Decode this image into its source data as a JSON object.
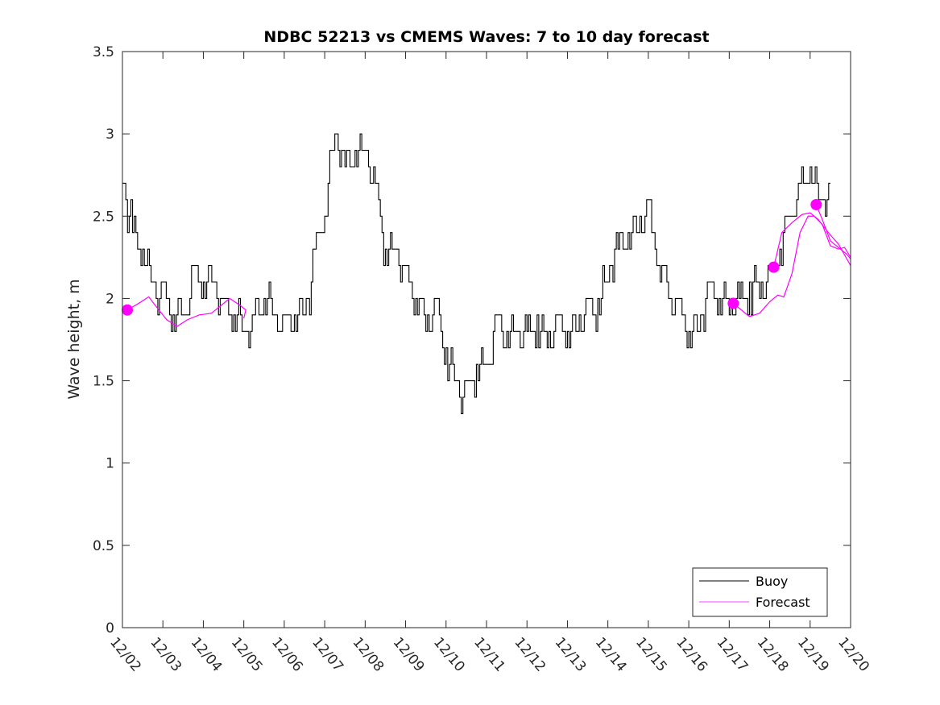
{
  "chart_data": {
    "type": "line",
    "title": "NDBC 52213 vs CMEMS Waves: 7 to 10 day forecast",
    "xlabel": "",
    "ylabel": "Wave height, m",
    "ylim": [
      0,
      3.5
    ],
    "xlim_days": [
      0,
      18
    ],
    "yticks": [
      0,
      0.5,
      1,
      1.5,
      2,
      2.5,
      3,
      3.5
    ],
    "ytick_labels": [
      "0",
      "0.5",
      "1",
      "1.5",
      "2",
      "2.5",
      "3",
      "3.5"
    ],
    "xtick_labels": [
      "12/02",
      "12/03",
      "12/04",
      "12/05",
      "12/06",
      "12/07",
      "12/08",
      "12/09",
      "12/10",
      "12/11",
      "12/12",
      "12/13",
      "12/14",
      "12/15",
      "12/16",
      "12/17",
      "12/18",
      "12/19",
      "12/20"
    ],
    "legend": {
      "placement": "bottom-right",
      "entries": [
        "Buoy",
        "Forecast"
      ]
    },
    "colors": {
      "buoy": "#000000",
      "forecast": "#ff00ff"
    },
    "buoy": {
      "x_step_days": 0.25,
      "values": [
        2.7,
        2.4,
        2.3,
        2.1,
        2.0,
        1.9,
        1.9,
        2.1,
        2.1,
        2.1,
        1.9,
        1.9,
        1.8,
        1.85,
        2.0,
        1.9,
        1.8,
        1.9,
        1.9,
        2.2,
        2.5,
        3.0,
        2.8,
        2.9,
        2.9,
        2.6,
        2.3,
        2.3,
        2.1,
        2.0,
        1.85,
        1.9,
        1.65,
        1.5,
        1.4,
        1.55,
        1.6,
        1.85,
        1.75,
        1.8,
        1.75,
        1.85,
        1.75,
        1.85,
        1.8,
        1.85,
        1.9,
        1.95,
        2.15,
        2.3,
        2.4,
        2.45,
        2.5,
        2.2,
        2.05,
        1.9,
        1.8,
        1.85,
        2.0,
        2.0,
        1.95,
        1.95,
        2.05,
        2.05,
        2.1,
        2.3,
        2.5,
        2.65,
        2.8,
        2.6
      ]
    },
    "forecast": [
      {
        "x": [
          0.12,
          0.4,
          0.65,
          0.9,
          1.1,
          1.35,
          1.6,
          1.9,
          2.2,
          2.45,
          2.65,
          2.9,
          3.05,
          3.0
        ],
        "y": [
          1.93,
          1.97,
          2.01,
          1.93,
          1.87,
          1.83,
          1.87,
          1.9,
          1.91,
          1.96,
          2.0,
          1.96,
          1.93,
          1.88
        ]
      },
      {
        "x": [
          15.1,
          15.3,
          15.5,
          15.75,
          16.0,
          16.2,
          16.35,
          16.55,
          16.75,
          16.95,
          17.1,
          17.3,
          17.5,
          17.7,
          17.85,
          18.0
        ],
        "y": [
          1.97,
          1.93,
          1.89,
          1.91,
          1.98,
          2.02,
          2.01,
          2.15,
          2.4,
          2.5,
          2.5,
          2.45,
          2.32,
          2.3,
          2.31,
          2.25
        ]
      },
      {
        "x": [
          16.1,
          16.3,
          16.55,
          16.8,
          17.0,
          17.2,
          17.45,
          17.7,
          18.0
        ],
        "y": [
          2.19,
          2.4,
          2.46,
          2.51,
          2.52,
          2.48,
          2.4,
          2.33,
          2.2
        ]
      },
      {
        "x": [
          17.15,
          17.3,
          17.5,
          17.7,
          17.9,
          18.0
        ],
        "y": [
          2.57,
          2.48,
          2.35,
          2.31,
          2.27,
          2.24
        ]
      }
    ],
    "forecast_start_markers": [
      {
        "x": 0.12,
        "y": 1.93
      },
      {
        "x": 15.1,
        "y": 1.97
      },
      {
        "x": 16.1,
        "y": 2.19
      },
      {
        "x": 17.15,
        "y": 2.57
      }
    ]
  }
}
